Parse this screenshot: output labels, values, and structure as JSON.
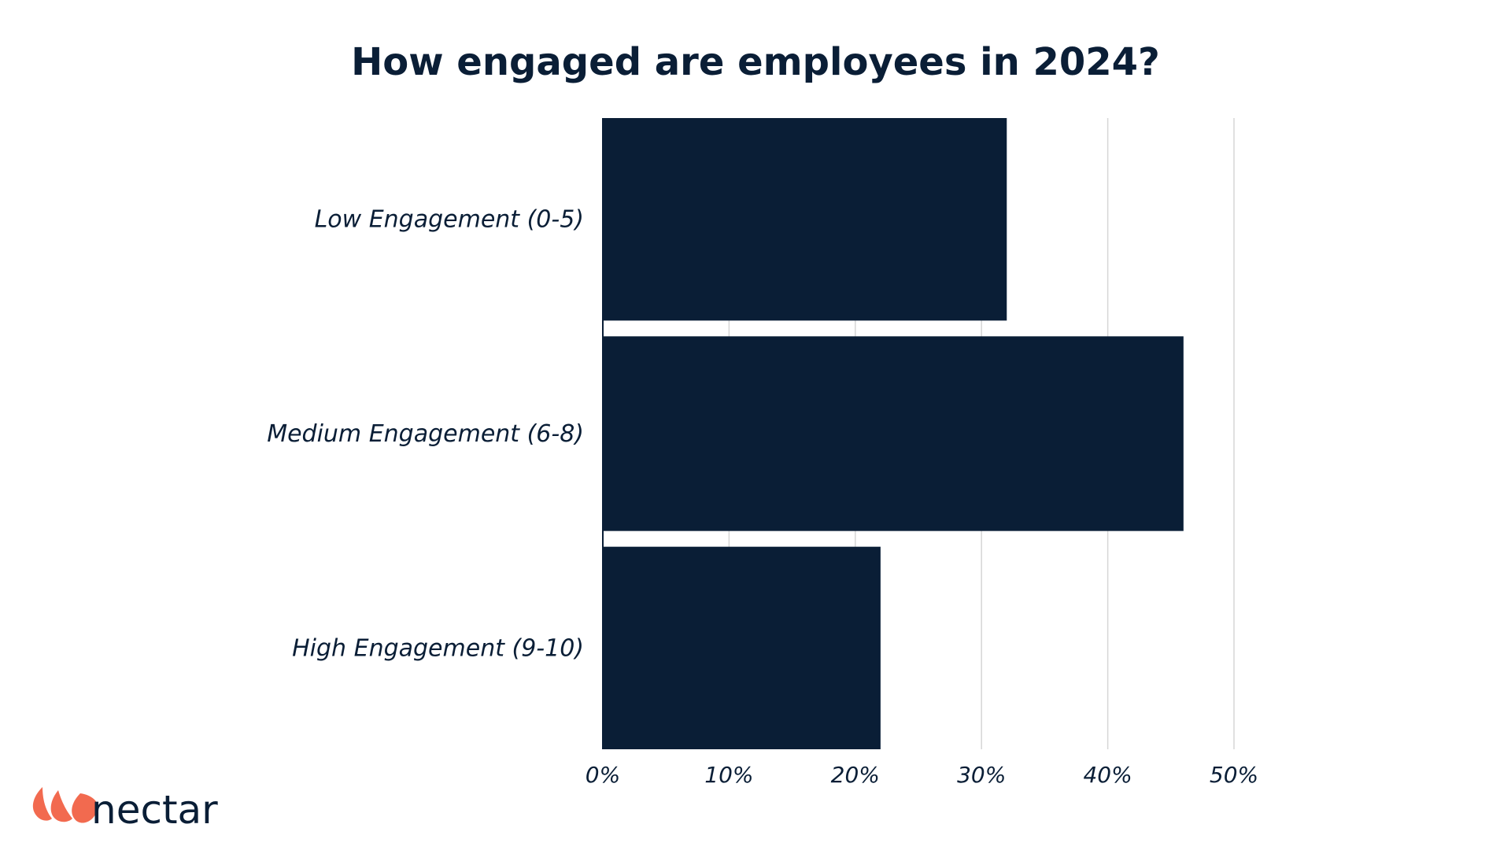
{
  "chart_data": {
    "type": "bar",
    "orientation": "horizontal",
    "title": "How engaged are employees in 2024?",
    "categories": [
      "Low Engagement (0-5)",
      "Medium Engagement (6-8)",
      "High Engagement (9-10)"
    ],
    "values": [
      32,
      46,
      22
    ],
    "unit": "%",
    "xlim": [
      0,
      50
    ],
    "xticks": [
      0,
      10,
      20,
      30,
      40,
      50
    ],
    "xtick_labels": [
      "0%",
      "10%",
      "20%",
      "30%",
      "40%",
      "50%"
    ],
    "grid": true,
    "bar_color": "#0a1e36"
  },
  "brand": {
    "logo_text": "nectar",
    "logo_color": "#f26a4f",
    "logo_icon": "nectar-petals-icon"
  }
}
